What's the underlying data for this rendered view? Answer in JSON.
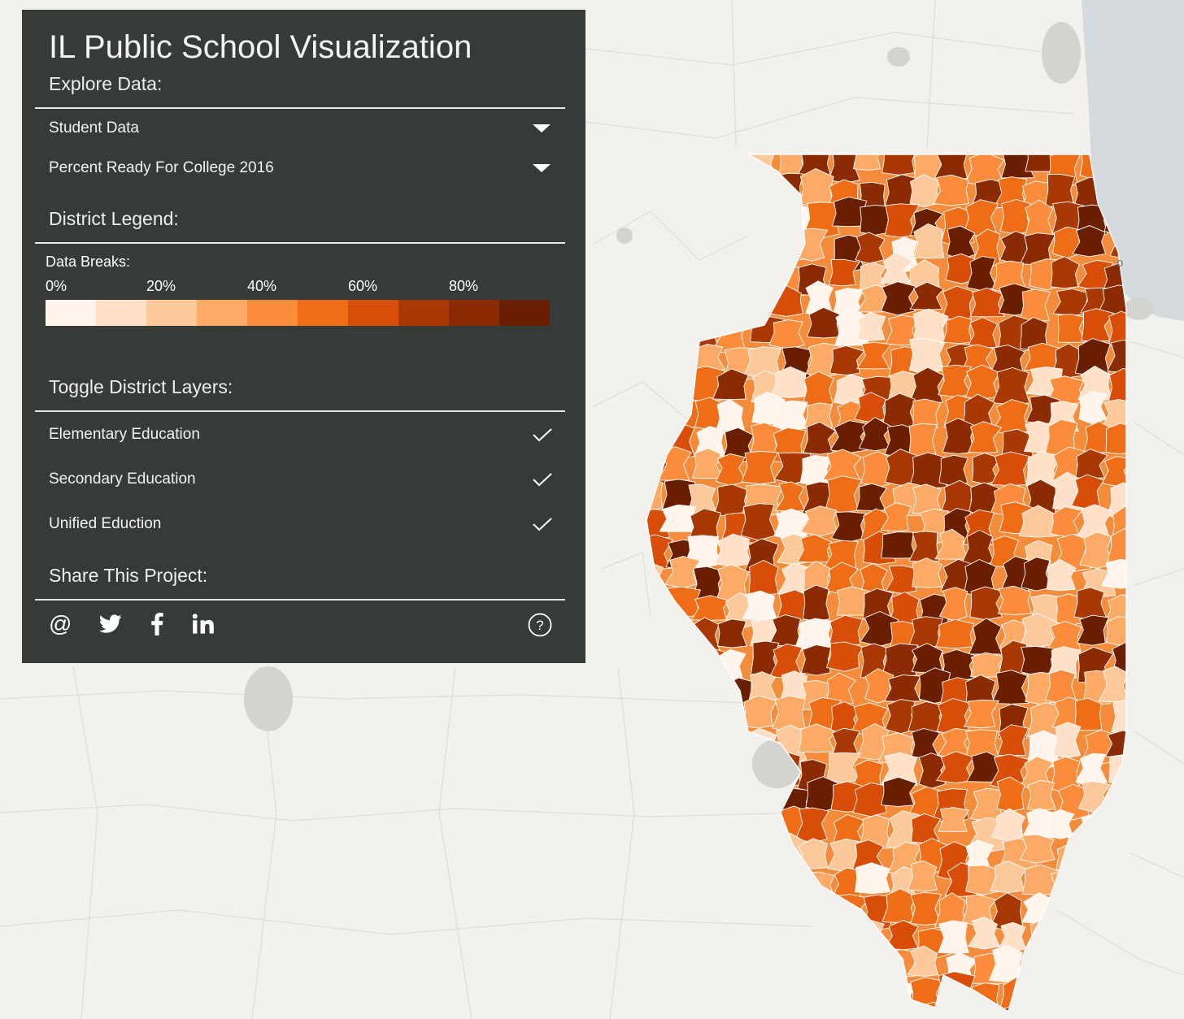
{
  "panel": {
    "title": "IL Public School Visualization",
    "explore_heading": "Explore Data:",
    "dataset_select": "Student Data",
    "metric_select": "Percent Ready For College 2016",
    "legend_heading": "District Legend:",
    "breaks_label": "Data Breaks:",
    "ticks": [
      "0%",
      "20%",
      "40%",
      "60%",
      "80%"
    ],
    "ramp_colors": [
      "#fff5ec",
      "#fee1c8",
      "#fdc99a",
      "#fdaa67",
      "#fb8c3c",
      "#f06d17",
      "#d84d07",
      "#a83904",
      "#8a2b03",
      "#6a1e02"
    ],
    "layers_heading": "Toggle District Layers:",
    "layers": [
      {
        "label": "Elementary Education",
        "checked": true
      },
      {
        "label": "Secondary Education",
        "checked": true
      },
      {
        "label": "Unified Eduction",
        "checked": true
      }
    ],
    "share_heading": "Share This Project:",
    "share_icons": [
      "email-icon",
      "twitter-icon",
      "facebook-icon",
      "linkedin-icon"
    ],
    "help_icon": "help-icon"
  },
  "map": {
    "water_color": "#d4dadd",
    "place_label_partial": "o"
  }
}
